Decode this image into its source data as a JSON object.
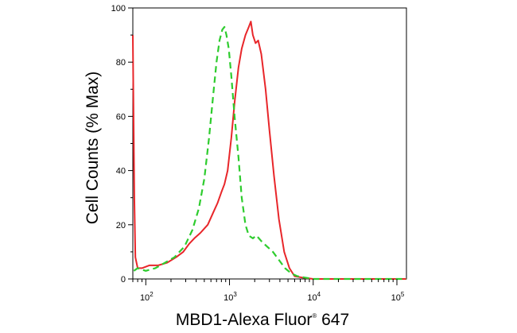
{
  "chart_data": {
    "type": "line",
    "title": "",
    "xlabel": "MBD1-Alexa Fluor",
    "xlabel_mark": "®",
    "xlabel_suffix": " 647",
    "ylabel": "Cell Counts (% Max)",
    "xscale": "log",
    "xlim": [
      70,
      130000
    ],
    "ylim": [
      0,
      100
    ],
    "grid": false,
    "legend": "none",
    "yticks": [
      {
        "value": 0,
        "label": "0"
      },
      {
        "value": 20,
        "label": "20"
      },
      {
        "value": 40,
        "label": "40"
      },
      {
        "value": 60,
        "label": "60"
      },
      {
        "value": 80,
        "label": "80"
      },
      {
        "value": 100,
        "label": "100"
      }
    ],
    "xticks": [
      {
        "value": 100,
        "base": "10",
        "exp": "2"
      },
      {
        "value": 1000,
        "base": "10",
        "exp": "3"
      },
      {
        "value": 10000,
        "base": "10",
        "exp": "4"
      },
      {
        "value": 100000,
        "base": "10",
        "exp": "5"
      }
    ],
    "series": [
      {
        "color": "#e8262a",
        "style": "solid",
        "points": [
          [
            70,
            90
          ],
          [
            71,
            70
          ],
          [
            73,
            30
          ],
          [
            75,
            8
          ],
          [
            80,
            4
          ],
          [
            90,
            4
          ],
          [
            110,
            5
          ],
          [
            140,
            5
          ],
          [
            180,
            6
          ],
          [
            230,
            8
          ],
          [
            280,
            10
          ],
          [
            330,
            13
          ],
          [
            380,
            15
          ],
          [
            450,
            17
          ],
          [
            550,
            20
          ],
          [
            650,
            25
          ],
          [
            720,
            28
          ],
          [
            800,
            32
          ],
          [
            870,
            35
          ],
          [
            950,
            40
          ],
          [
            1050,
            52
          ],
          [
            1150,
            65
          ],
          [
            1280,
            78
          ],
          [
            1400,
            85
          ],
          [
            1550,
            90
          ],
          [
            1700,
            93
          ],
          [
            1800,
            95
          ],
          [
            1900,
            90
          ],
          [
            2050,
            87
          ],
          [
            2200,
            88
          ],
          [
            2400,
            83
          ],
          [
            2700,
            70
          ],
          [
            3000,
            55
          ],
          [
            3400,
            38
          ],
          [
            3900,
            22
          ],
          [
            4500,
            10
          ],
          [
            5200,
            4
          ],
          [
            6000,
            1
          ],
          [
            7500,
            0.5
          ],
          [
            10000,
            0
          ],
          [
            50000,
            0
          ],
          [
            130000,
            0
          ]
        ]
      },
      {
        "color": "#2ecc2e",
        "style": "dashed",
        "points": [
          [
            72,
            3
          ],
          [
            80,
            4
          ],
          [
            100,
            3
          ],
          [
            130,
            4
          ],
          [
            170,
            6
          ],
          [
            220,
            8
          ],
          [
            290,
            12
          ],
          [
            360,
            18
          ],
          [
            430,
            26
          ],
          [
            500,
            37
          ],
          [
            570,
            52
          ],
          [
            640,
            68
          ],
          [
            700,
            80
          ],
          [
            760,
            88
          ],
          [
            820,
            92
          ],
          [
            870,
            93
          ],
          [
            920,
            90
          ],
          [
            980,
            85
          ],
          [
            1050,
            75
          ],
          [
            1150,
            60
          ],
          [
            1280,
            45
          ],
          [
            1400,
            30
          ],
          [
            1550,
            20
          ],
          [
            1700,
            16
          ],
          [
            1900,
            15
          ],
          [
            2100,
            16
          ],
          [
            2400,
            14
          ],
          [
            2800,
            12
          ],
          [
            3300,
            10
          ],
          [
            3900,
            7
          ],
          [
            4600,
            4
          ],
          [
            5500,
            2
          ],
          [
            6500,
            1
          ],
          [
            8000,
            0.5
          ],
          [
            10000,
            0
          ],
          [
            50000,
            0
          ],
          [
            130000,
            0
          ]
        ]
      }
    ]
  }
}
